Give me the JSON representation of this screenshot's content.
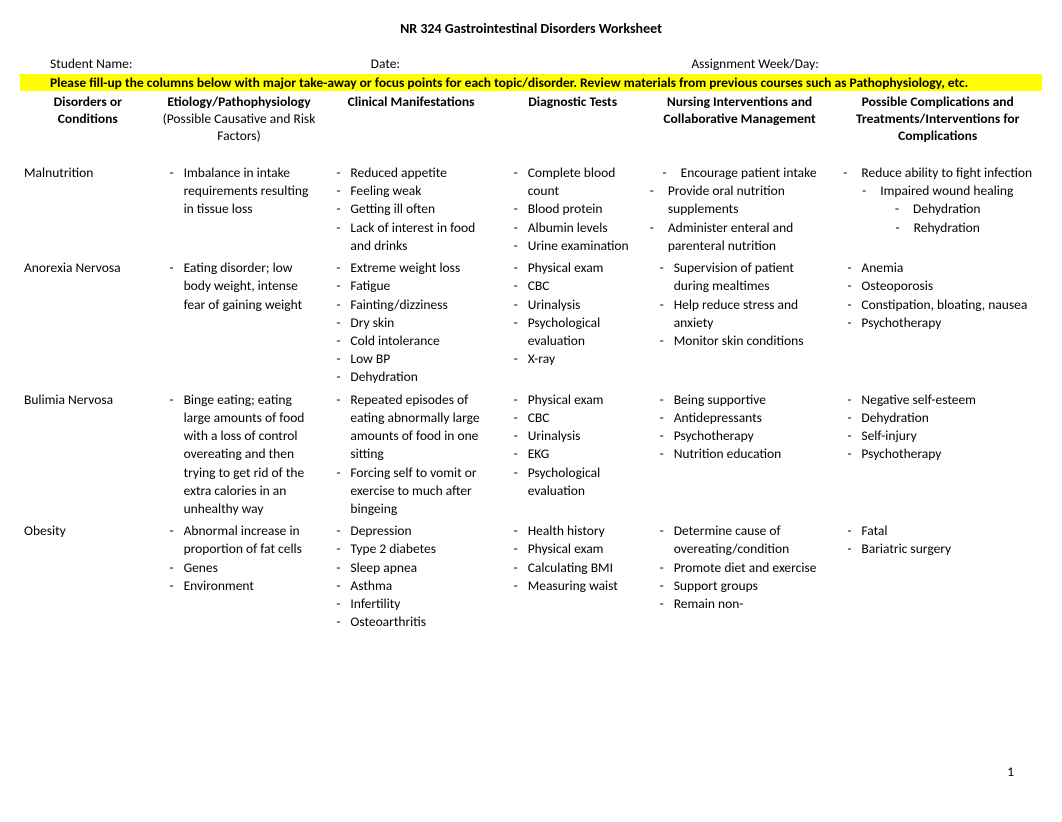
{
  "title": "NR 324 Gastrointestinal Disorders Worksheet",
  "meta": {
    "student_label": "Student Name:",
    "date_label": "Date:",
    "week_label": "Assignment Week/Day:"
  },
  "instructions": "Please fill-up the columns below with major take-away or focus points for each topic/disorder. Review materials from previous courses such as Pathophysiology, etc.",
  "columns": [
    {
      "label": "Disorders or Conditions",
      "sub": ""
    },
    {
      "label": "Etiology/Pathophysiology",
      "sub": "(Possible Causative and Risk Factors)"
    },
    {
      "label": "Clinical Manifestations",
      "sub": ""
    },
    {
      "label": "Diagnostic Tests",
      "sub": ""
    },
    {
      "label": "Nursing Interventions and Collaborative Management",
      "sub": ""
    },
    {
      "label": "Possible Complications and Treatments/Interventions for Complications",
      "sub": ""
    }
  ],
  "rows": [
    {
      "disorder": "Malnutrition",
      "etiology": [
        "Imbalance in intake requirements resulting in tissue loss"
      ],
      "clinical": [
        "Reduced appetite",
        "Feeling weak",
        "Getting ill often",
        "Lack of interest in food and drinks"
      ],
      "diagnostic": [
        "Complete blood count",
        "Blood protein",
        "Albumin levels",
        "Urine examination"
      ],
      "nursing": [
        "Encourage patient intake",
        "Provide oral nutrition supplements",
        "Administer enteral and parenteral nutrition"
      ],
      "nursing_center": true,
      "complications": [
        "Reduce ability to fight infection",
        "Impaired wound healing",
        "Dehydration",
        "Rehydration"
      ],
      "compl_center": true
    },
    {
      "disorder": "Anorexia Nervosa",
      "etiology": [
        "Eating disorder; low body weight, intense fear of gaining weight"
      ],
      "clinical": [
        "Extreme weight loss",
        "Fatigue",
        "Fainting/dizziness",
        "Dry skin",
        "Cold intolerance",
        "Low BP",
        "Dehydration"
      ],
      "diagnostic": [
        "Physical exam",
        "CBC",
        "Urinalysis",
        "Psychological evaluation",
        "X-ray"
      ],
      "nursing": [
        "Supervision of patient during mealtimes",
        "Help reduce stress and anxiety",
        "Monitor skin conditions"
      ],
      "complications": [
        "Anemia",
        "Osteoporosis",
        "Constipation, bloating, nausea",
        "Psychotherapy"
      ]
    },
    {
      "disorder": "Bulimia Nervosa",
      "etiology": [
        "Binge eating; eating large amounts of food with a loss of control overeating and then trying to get rid of the extra calories in an unhealthy way"
      ],
      "clinical": [
        "Repeated episodes of eating abnormally large amounts of food in one sitting",
        "Forcing self to vomit or exercise to much after bingeing"
      ],
      "diagnostic": [
        "Physical exam",
        "CBC",
        "Urinalysis",
        "EKG",
        "Psychological evaluation"
      ],
      "nursing": [
        "Being supportive",
        "Antidepressants",
        "Psychotherapy",
        "Nutrition education"
      ],
      "complications": [
        "Negative self-esteem",
        "Dehydration",
        "Self-injury",
        "Psychotherapy"
      ]
    },
    {
      "disorder": "Obesity",
      "etiology": [
        "Abnormal increase in proportion of fat cells",
        "Genes",
        "Environment"
      ],
      "clinical": [
        "Depression",
        "Type 2 diabetes",
        "Sleep apnea",
        "Asthma",
        "Infertility",
        "Osteoarthritis"
      ],
      "diagnostic": [
        "Health history",
        "Physical exam",
        "Calculating BMI",
        "Measuring waist"
      ],
      "nursing": [
        "Determine cause of overeating/condition",
        "Promote diet and exercise",
        "Support groups",
        "Remain non-"
      ],
      "complications": [
        "Fatal",
        "Bariatric surgery"
      ]
    }
  ],
  "page_number": "1"
}
